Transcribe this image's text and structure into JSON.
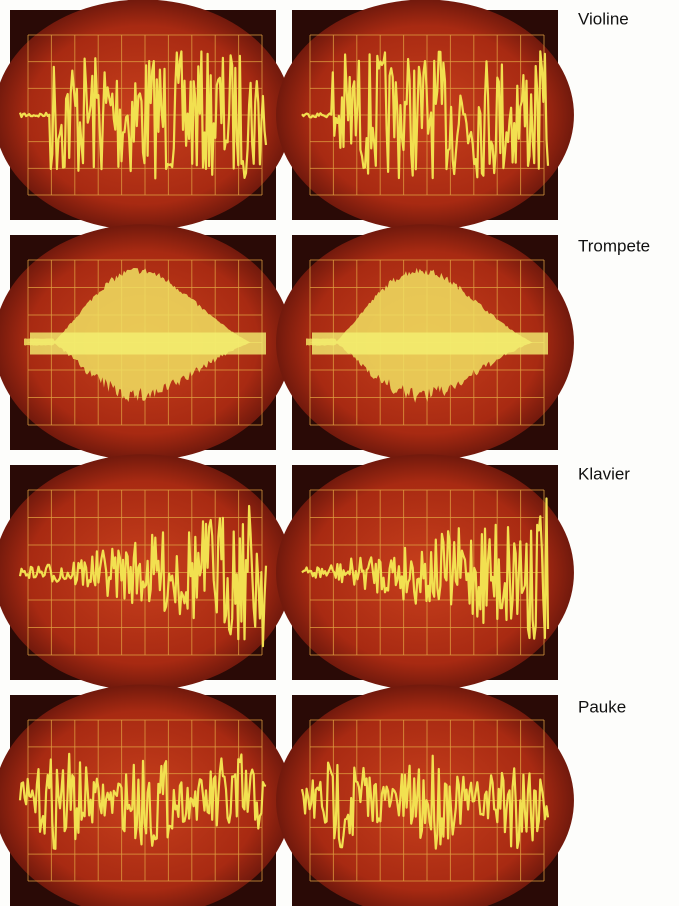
{
  "labels": [
    "Violine",
    "Trompete",
    "Klavier",
    "Pauke"
  ]
}
